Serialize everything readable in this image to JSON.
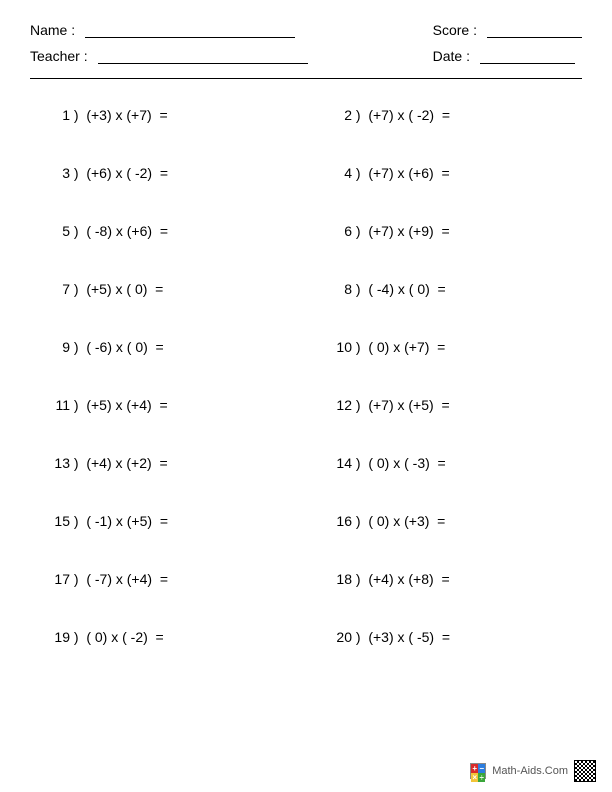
{
  "header": {
    "name_label": "Name :",
    "teacher_label": "Teacher :",
    "score_label": "Score :",
    "date_label": "Date :"
  },
  "problems": [
    {
      "n": "1",
      "a": "+3",
      "b": "+7"
    },
    {
      "n": "2",
      "a": "+7",
      "b": " -2"
    },
    {
      "n": "3",
      "a": "+6",
      "b": " -2"
    },
    {
      "n": "4",
      "a": "+7",
      "b": "+6"
    },
    {
      "n": "5",
      "a": " -8",
      "b": "+6"
    },
    {
      "n": "6",
      "a": "+7",
      "b": "+9"
    },
    {
      "n": "7",
      "a": "+5",
      "b": " 0"
    },
    {
      "n": "8",
      "a": " -4",
      "b": " 0"
    },
    {
      "n": "9",
      "a": " -6",
      "b": " 0"
    },
    {
      "n": "10",
      "a": " 0",
      "b": "+7"
    },
    {
      "n": "11",
      "a": "+5",
      "b": "+4"
    },
    {
      "n": "12",
      "a": "+7",
      "b": "+5"
    },
    {
      "n": "13",
      "a": "+4",
      "b": "+2"
    },
    {
      "n": "14",
      "a": " 0",
      "b": " -3"
    },
    {
      "n": "15",
      "a": " -1",
      "b": "+5"
    },
    {
      "n": "16",
      "a": " 0",
      "b": "+3"
    },
    {
      "n": "17",
      "a": " -7",
      "b": "+4"
    },
    {
      "n": "18",
      "a": "+4",
      "b": "+8"
    },
    {
      "n": "19",
      "a": " 0",
      "b": " -2"
    },
    {
      "n": "20",
      "a": "+3",
      "b": " -5"
    }
  ],
  "layout": {
    "columns": 2,
    "operator": "x",
    "equals": "="
  },
  "footer": {
    "site": "Math-Aids.Com",
    "logo_colors": [
      "#d92b2b",
      "#2b7de0",
      "#f2c438",
      "#3aa63a"
    ],
    "logo_symbols": [
      "+",
      "−",
      "×",
      "÷"
    ]
  },
  "style": {
    "page_bg": "#ffffff",
    "text_color": "#000000",
    "font_size_body": 14,
    "font_size_footer": 11,
    "rule_color": "#000000"
  }
}
